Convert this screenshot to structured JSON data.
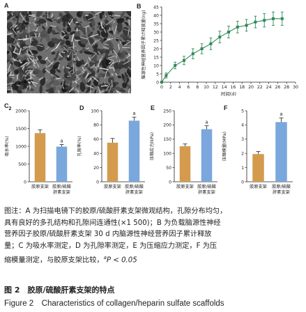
{
  "panels": {
    "a": "A",
    "b": "B",
    "c": "C",
    "c_sub": "2",
    "d": "D",
    "e": "E",
    "f": "F"
  },
  "chart_data": [
    {
      "id": "B",
      "type": "line",
      "xlabel": "时间(d)",
      "ylabel": "脑源性神经营养因子累计释放量(ng)",
      "xlim": [
        0,
        30
      ],
      "ylim": [
        0,
        45
      ],
      "xticks": [
        0,
        2,
        4,
        6,
        8,
        10,
        12,
        14,
        16,
        18,
        20,
        22,
        24,
        26,
        28,
        30
      ],
      "yticks": [
        0,
        5,
        10,
        15,
        20,
        25,
        30,
        35,
        40,
        45
      ],
      "x": [
        0,
        1,
        3,
        5,
        7,
        9,
        11,
        13,
        15,
        17,
        19,
        21,
        23,
        25,
        27
      ],
      "y": [
        0,
        4,
        10,
        13,
        17,
        20,
        23,
        27,
        30,
        33,
        34,
        36,
        37,
        38,
        38
      ],
      "err": [
        0.5,
        1.5,
        2,
        2.5,
        3,
        3,
        3.5,
        3.5,
        3.5,
        3.5,
        3.5,
        3.5,
        4,
        4,
        4
      ],
      "color": "#2f8a57",
      "grid": false
    },
    {
      "id": "C",
      "type": "bar",
      "ylabel": "吸水率(%)",
      "ylim": [
        0,
        2000
      ],
      "yticks": [
        0,
        500,
        1000,
        1500,
        2000
      ],
      "categories": [
        "胶原支架",
        "胶原/硫酸肝素支架"
      ],
      "values": [
        1370,
        990
      ],
      "err": [
        90,
        60
      ],
      "sig": [
        "",
        "a"
      ],
      "colors": [
        "#d49b4f",
        "#7aa7dc"
      ]
    },
    {
      "id": "D",
      "type": "bar",
      "ylabel": "孔隙率(%)",
      "ylim": [
        0,
        100
      ],
      "yticks": [
        0,
        20,
        40,
        60,
        80,
        100
      ],
      "categories": [
        "胶原支架",
        "胶原/硫酸肝素支架"
      ],
      "values": [
        55,
        86
      ],
      "err": [
        6,
        5
      ],
      "sig": [
        "",
        "a"
      ],
      "colors": [
        "#d49b4f",
        "#7aa7dc"
      ]
    },
    {
      "id": "E",
      "type": "bar",
      "ylabel": "压缩应力(kPa)",
      "ylim": [
        0,
        250
      ],
      "yticks": [
        0,
        50,
        100,
        150,
        200,
        250
      ],
      "categories": [
        "胶原支架",
        "胶原/硫酸肝素支架"
      ],
      "values": [
        125,
        185
      ],
      "err": [
        8,
        12
      ],
      "sig": [
        "",
        "a"
      ],
      "colors": [
        "#d49b4f",
        "#7aa7dc"
      ]
    },
    {
      "id": "F",
      "type": "bar",
      "ylabel": "压缩模量(MPa)",
      "ylim": [
        0,
        5
      ],
      "yticks": [
        0,
        1,
        2,
        3,
        4,
        5
      ],
      "categories": [
        "胶原支架",
        "胶原/硫酸肝素支架"
      ],
      "values": [
        1.95,
        4.2
      ],
      "err": [
        0.18,
        0.3
      ],
      "sig": [
        "",
        "a"
      ],
      "colors": [
        "#d49b4f",
        "#7aa7dc"
      ]
    }
  ],
  "caption": {
    "line1": "图注：A 为扫描电镜下的胶原/硫酸肝素支架微观结构，孔隙分布均匀，",
    "line2": "具有良好的多孔结构和孔隙间连通性(×1 500)；B 为负载脑源性神经",
    "line3": "营养因子胶原/硫酸肝素支架 30 d 内脑源性神经营养因子累计释放",
    "line4": "量；C 为吸水率测定，D 为孔隙率测定，E 为压缩应力测定，F 为压",
    "line5_a": "缩模量测定，与胶原支架比较，",
    "line5_b": "P < 0.05"
  },
  "figure_title": "图 2　胶原/硫酸肝素支架的特点",
  "figure_title_en": "Figure 2　Characteristics of collagen/heparin sulfate scaffolds"
}
